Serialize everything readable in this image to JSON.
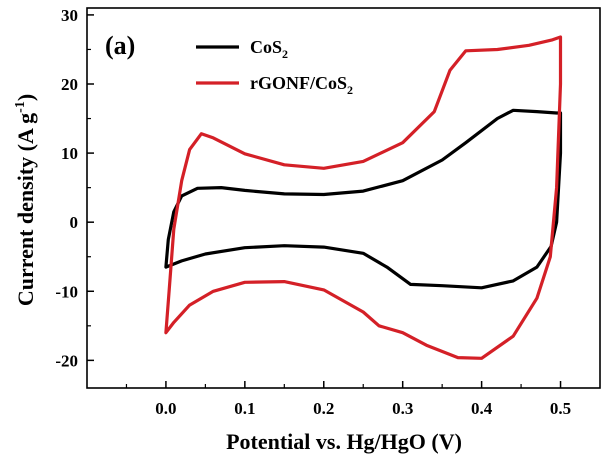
{
  "chart_data": {
    "type": "line",
    "panel_label": "(a)",
    "xlabel": "Potential vs. Hg/HgO (V)",
    "ylabel": {
      "main": "Current density (A g",
      "superscript": "-1",
      "suffix": ")"
    },
    "xlim": [
      -0.1,
      0.55
    ],
    "ylim": [
      -24,
      31
    ],
    "xticks": [
      0.0,
      0.1,
      0.2,
      0.3,
      0.4,
      0.5
    ],
    "xtick_labels": [
      "0.0",
      "0.1",
      "0.2",
      "0.3",
      "0.4",
      "0.5"
    ],
    "yticks": [
      -20,
      -10,
      0,
      10,
      20,
      30
    ],
    "ytick_labels": [
      "-20",
      "-10",
      "0",
      "10",
      "20",
      "30"
    ],
    "grid": false,
    "legend_position": "top-center",
    "series": [
      {
        "legend_main": "CoS",
        "legend_sub": "2",
        "color": "#000000",
        "points": [
          [
            0.0,
            -6.5
          ],
          [
            0.003,
            -2.5
          ],
          [
            0.01,
            1.5
          ],
          [
            0.02,
            3.8
          ],
          [
            0.04,
            4.9
          ],
          [
            0.07,
            5.0
          ],
          [
            0.1,
            4.6
          ],
          [
            0.15,
            4.1
          ],
          [
            0.2,
            4.0
          ],
          [
            0.25,
            4.5
          ],
          [
            0.3,
            6.0
          ],
          [
            0.35,
            9.0
          ],
          [
            0.38,
            11.5
          ],
          [
            0.42,
            15.0
          ],
          [
            0.44,
            16.2
          ],
          [
            0.47,
            16.0
          ],
          [
            0.495,
            15.8
          ],
          [
            0.5,
            15.8
          ],
          [
            0.5,
            10.0
          ],
          [
            0.495,
            0.0
          ],
          [
            0.488,
            -3.5
          ],
          [
            0.47,
            -6.5
          ],
          [
            0.44,
            -8.5
          ],
          [
            0.4,
            -9.5
          ],
          [
            0.35,
            -9.2
          ],
          [
            0.31,
            -9.0
          ],
          [
            0.28,
            -6.5
          ],
          [
            0.25,
            -4.5
          ],
          [
            0.2,
            -3.6
          ],
          [
            0.15,
            -3.4
          ],
          [
            0.1,
            -3.7
          ],
          [
            0.05,
            -4.6
          ],
          [
            0.02,
            -5.6
          ],
          [
            0.0,
            -6.5
          ]
        ]
      },
      {
        "legend_main": "rGONF/CoS",
        "legend_sub": "2",
        "color": "#d42027",
        "points": [
          [
            0.0,
            -16.0
          ],
          [
            0.004,
            -10.0
          ],
          [
            0.01,
            -1.0
          ],
          [
            0.02,
            6.0
          ],
          [
            0.03,
            10.5
          ],
          [
            0.045,
            12.8
          ],
          [
            0.06,
            12.2
          ],
          [
            0.1,
            9.9
          ],
          [
            0.15,
            8.3
          ],
          [
            0.2,
            7.8
          ],
          [
            0.25,
            8.8
          ],
          [
            0.3,
            11.5
          ],
          [
            0.34,
            16.0
          ],
          [
            0.36,
            22.0
          ],
          [
            0.38,
            24.8
          ],
          [
            0.42,
            25.0
          ],
          [
            0.46,
            25.6
          ],
          [
            0.49,
            26.4
          ],
          [
            0.5,
            26.8
          ],
          [
            0.5,
            20.0
          ],
          [
            0.495,
            5.0
          ],
          [
            0.487,
            -5.0
          ],
          [
            0.47,
            -11.0
          ],
          [
            0.44,
            -16.5
          ],
          [
            0.4,
            -19.7
          ],
          [
            0.37,
            -19.6
          ],
          [
            0.33,
            -17.8
          ],
          [
            0.3,
            -16.0
          ],
          [
            0.27,
            -15.0
          ],
          [
            0.25,
            -13.0
          ],
          [
            0.2,
            -9.8
          ],
          [
            0.15,
            -8.6
          ],
          [
            0.1,
            -8.7
          ],
          [
            0.06,
            -10.0
          ],
          [
            0.03,
            -12.0
          ],
          [
            0.01,
            -14.5
          ],
          [
            0.0,
            -16.0
          ]
        ]
      }
    ]
  }
}
